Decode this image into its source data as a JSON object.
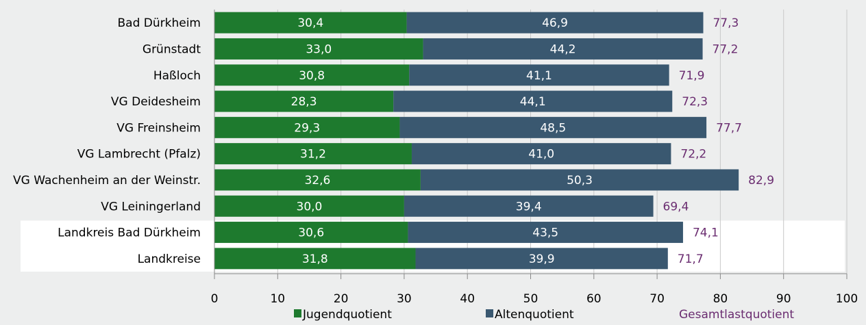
{
  "chart_data": {
    "type": "bar",
    "stacked": true,
    "orientation": "horizontal",
    "categories": [
      "Bad Dürkheim",
      "Grünstadt",
      "Haßloch",
      "VG Deidesheim",
      "VG Freinsheim",
      "VG Lambrecht (Pfalz)",
      "VG Wachenheim an der Weinstr.",
      "VG Leiningerland",
      "Landkreis Bad Dürkheim",
      "Landkreise"
    ],
    "highlighted_categories": [
      "Landkreis Bad Dürkheim",
      "Landkreise"
    ],
    "series": [
      {
        "name": "Jugendquotient",
        "color": "#1e7a2e",
        "values": [
          30.4,
          33.0,
          30.8,
          28.3,
          29.3,
          31.2,
          32.6,
          30.0,
          30.6,
          31.8
        ],
        "labels": [
          "30,4",
          "33,0",
          "30,8",
          "28,3",
          "29,3",
          "31,2",
          "32,6",
          "30,0",
          "30,6",
          "31,8"
        ]
      },
      {
        "name": "Altenquotient",
        "color": "#3a5870",
        "values": [
          46.9,
          44.2,
          41.1,
          44.1,
          48.5,
          41.0,
          50.3,
          39.4,
          43.5,
          39.9
        ],
        "labels": [
          "46,9",
          "44,2",
          "41,1",
          "44,1",
          "48,5",
          "41,0",
          "50,3",
          "39,4",
          "43,5",
          "39,9"
        ]
      }
    ],
    "totals": {
      "name": "Gesamtlastquotient",
      "color": "#6a2c70",
      "values": [
        77.3,
        77.2,
        71.9,
        72.3,
        77.7,
        72.2,
        82.9,
        69.4,
        74.1,
        71.7
      ],
      "labels": [
        "77,3",
        "77,2",
        "71,9",
        "72,3",
        "77,7",
        "72,2",
        "82,9",
        "69,4",
        "74,1",
        "71,7"
      ]
    },
    "xlim": [
      0,
      100
    ],
    "xticks": [
      0,
      10,
      20,
      30,
      40,
      50,
      60,
      70,
      80,
      90,
      100
    ],
    "grid": true,
    "legend": "bottom",
    "colors": {
      "background": "#edeeee",
      "highlight_band": "#ffffff",
      "grid": "#c8c8c8",
      "axis": "#888888"
    }
  }
}
